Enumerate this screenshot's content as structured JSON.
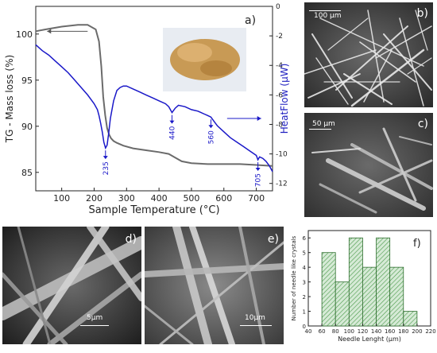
{
  "panels": {
    "a": {
      "label": "a)",
      "xlabel": "Sample Temperature (°C)",
      "ylabel_left": "TG - Mass loss (%)",
      "ylabel_right": "HeatFlow (μW)",
      "xlim": [
        20,
        750
      ],
      "ylim_left": [
        83,
        103
      ],
      "ylim_right": [
        -12.5,
        0
      ],
      "x_ticks": [
        100,
        200,
        300,
        400,
        500,
        600,
        700
      ],
      "y_ticks_left": [
        85,
        90,
        95,
        100
      ],
      "y_ticks_right": [
        0,
        -2,
        -4,
        -6,
        -8,
        -10,
        -12
      ],
      "peaks": [
        {
          "label": "235",
          "x": 235,
          "y": -9.6
        },
        {
          "label": "440",
          "x": 440,
          "y": -7.2
        },
        {
          "label": "560",
          "x": 560,
          "y": -7.5
        },
        {
          "label": "705",
          "x": 705,
          "y": -10.4
        }
      ],
      "series": [
        {
          "color": "#6b6b6b",
          "x": [
            20,
            50,
            100,
            150,
            180,
            205,
            215,
            222,
            228,
            234,
            240,
            246,
            252,
            260,
            270,
            290,
            320,
            360,
            400,
            430,
            450,
            470,
            500,
            550,
            600,
            650,
            700,
            750
          ],
          "y": [
            100.3,
            100.5,
            100.8,
            101.0,
            101.0,
            100.5,
            99.2,
            96.5,
            93.2,
            91.2,
            89.8,
            89.1,
            88.7,
            88.4,
            88.2,
            87.9,
            87.6,
            87.4,
            87.2,
            87.0,
            86.6,
            86.2,
            86.0,
            85.9,
            85.9,
            85.9,
            85.8,
            85.7
          ]
        },
        {
          "color": "#1a18c8",
          "x": [
            20,
            40,
            60,
            80,
            100,
            120,
            140,
            160,
            180,
            200,
            210,
            215,
            220,
            225,
            230,
            235,
            240,
            245,
            250,
            260,
            270,
            280,
            290,
            300,
            320,
            340,
            360,
            380,
            400,
            420,
            430,
            440,
            450,
            460,
            480,
            500,
            520,
            540,
            550,
            560,
            570,
            580,
            600,
            620,
            640,
            660,
            680,
            700,
            705,
            710,
            720,
            730,
            740,
            750
          ],
          "y": [
            -2.6,
            -3.0,
            -3.3,
            -3.7,
            -4.1,
            -4.5,
            -5.0,
            -5.5,
            -6.0,
            -6.6,
            -7.0,
            -7.4,
            -7.9,
            -8.5,
            -9.2,
            -9.6,
            -9.4,
            -8.6,
            -7.6,
            -6.4,
            -5.7,
            -5.5,
            -5.4,
            -5.4,
            -5.6,
            -5.8,
            -6.0,
            -6.2,
            -6.4,
            -6.6,
            -6.8,
            -7.2,
            -6.9,
            -6.7,
            -6.8,
            -7.0,
            -7.1,
            -7.3,
            -7.4,
            -7.5,
            -7.8,
            -8.1,
            -8.5,
            -8.9,
            -9.2,
            -9.5,
            -9.8,
            -10.1,
            -10.4,
            -10.2,
            -10.3,
            -10.5,
            -10.8,
            -11.2
          ]
        }
      ]
    },
    "b": {
      "label": "b)",
      "scale": "100 μm"
    },
    "c": {
      "label": "c)",
      "scale": "50 μm"
    },
    "d": {
      "label": "d)",
      "scale": "5μm"
    },
    "e": {
      "label": "e)",
      "scale": "10μm"
    },
    "f": {
      "label": "f)",
      "xlabel": "Needle Lenght (μm)",
      "ylabel": "Number of needle like crystals",
      "xlim": [
        40,
        220
      ],
      "ylim": [
        0,
        6.5
      ],
      "x_ticks": [
        40,
        60,
        80,
        100,
        120,
        140,
        160,
        180,
        200,
        220
      ],
      "y_ticks": [
        0,
        1,
        2,
        3,
        4,
        5,
        6
      ],
      "bins": [
        60,
        80,
        100,
        120,
        140,
        160,
        180,
        200
      ],
      "counts": [
        5,
        3,
        6,
        4,
        6,
        4,
        1
      ],
      "bar_color": "#4a9a4a"
    }
  },
  "chart_data": [
    {
      "type": "line",
      "xlabel": "Sample Temperature (°C)",
      "ylabel": "TG - Mass loss (%)",
      "ylabel_right": "HeatFlow (μW)",
      "xlim": [
        20,
        750
      ],
      "ylim": [
        83,
        103
      ],
      "ylim_right": [
        -12.5,
        0
      ],
      "annotations": [
        "235",
        "440",
        "560",
        "705"
      ]
    },
    {
      "type": "bar",
      "xlabel": "Needle Lenght (μm)",
      "ylabel": "Number of needle like crystals",
      "categories": [
        "60-80",
        "80-100",
        "100-120",
        "120-140",
        "140-160",
        "160-180",
        "180-200"
      ],
      "values": [
        5,
        3,
        6,
        4,
        6,
        4,
        1
      ],
      "ylim": [
        0,
        6.5
      ]
    }
  ]
}
